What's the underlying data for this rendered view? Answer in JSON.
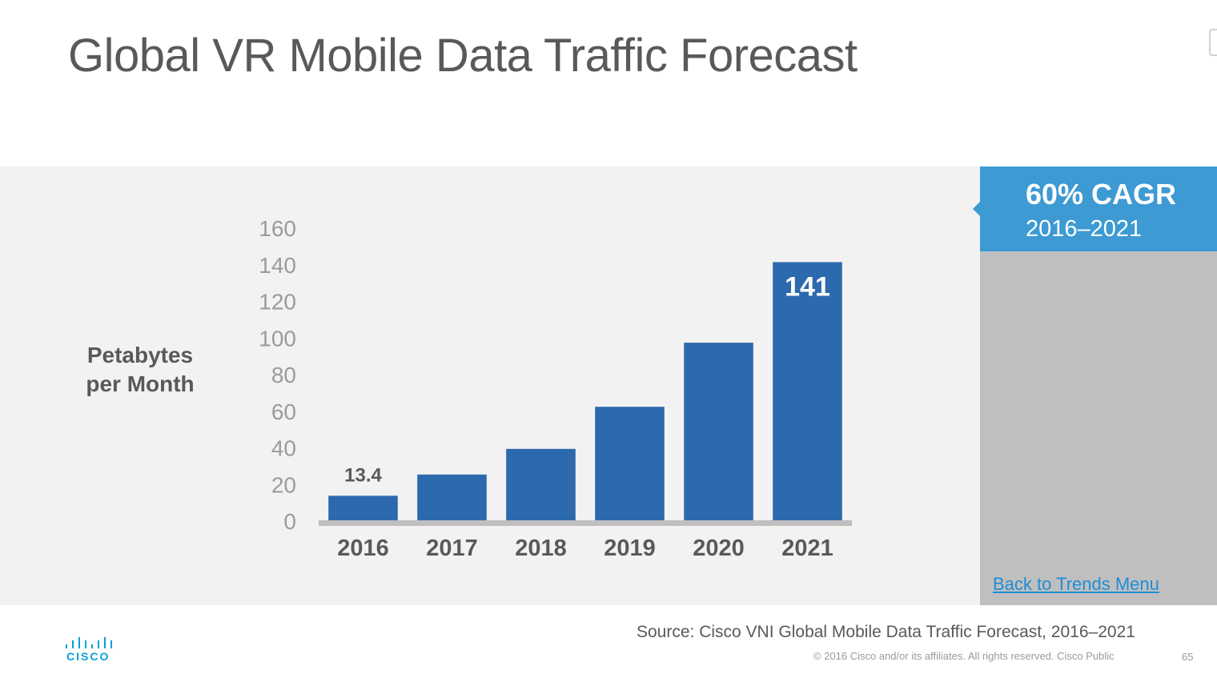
{
  "slide": {
    "title": "Global VR Mobile Data Traffic Forecast",
    "callout_big": "60% CAGR",
    "callout_small": "2016–2021",
    "back_link": "Back to Trends Menu",
    "source": "Source: Cisco VNI Global Mobile Data Traffic Forecast, 2016–2021",
    "copyright": "© 2016  Cisco and/or its affiliates. All rights reserved.   Cisco Public",
    "page_number": "65",
    "logo_text": "CISCO"
  },
  "chart_data": {
    "type": "bar",
    "title": "Global VR Mobile Data Traffic Forecast",
    "ylabel": "Petabytes per Month",
    "ylabel_lines": [
      "Petabytes",
      "per Month"
    ],
    "xlabel": "",
    "categories": [
      "2016",
      "2017",
      "2018",
      "2019",
      "2020",
      "2021"
    ],
    "values": [
      13.4,
      25,
      39,
      62,
      97,
      141
    ],
    "data_labels": [
      "13.4",
      "",
      "",
      "",
      "",
      "141"
    ],
    "ylim": [
      0,
      160
    ],
    "yticks": [
      0,
      20,
      40,
      60,
      80,
      100,
      120,
      140,
      160
    ],
    "grid": false,
    "legend": "none",
    "bar_color": "#2d69ad"
  }
}
